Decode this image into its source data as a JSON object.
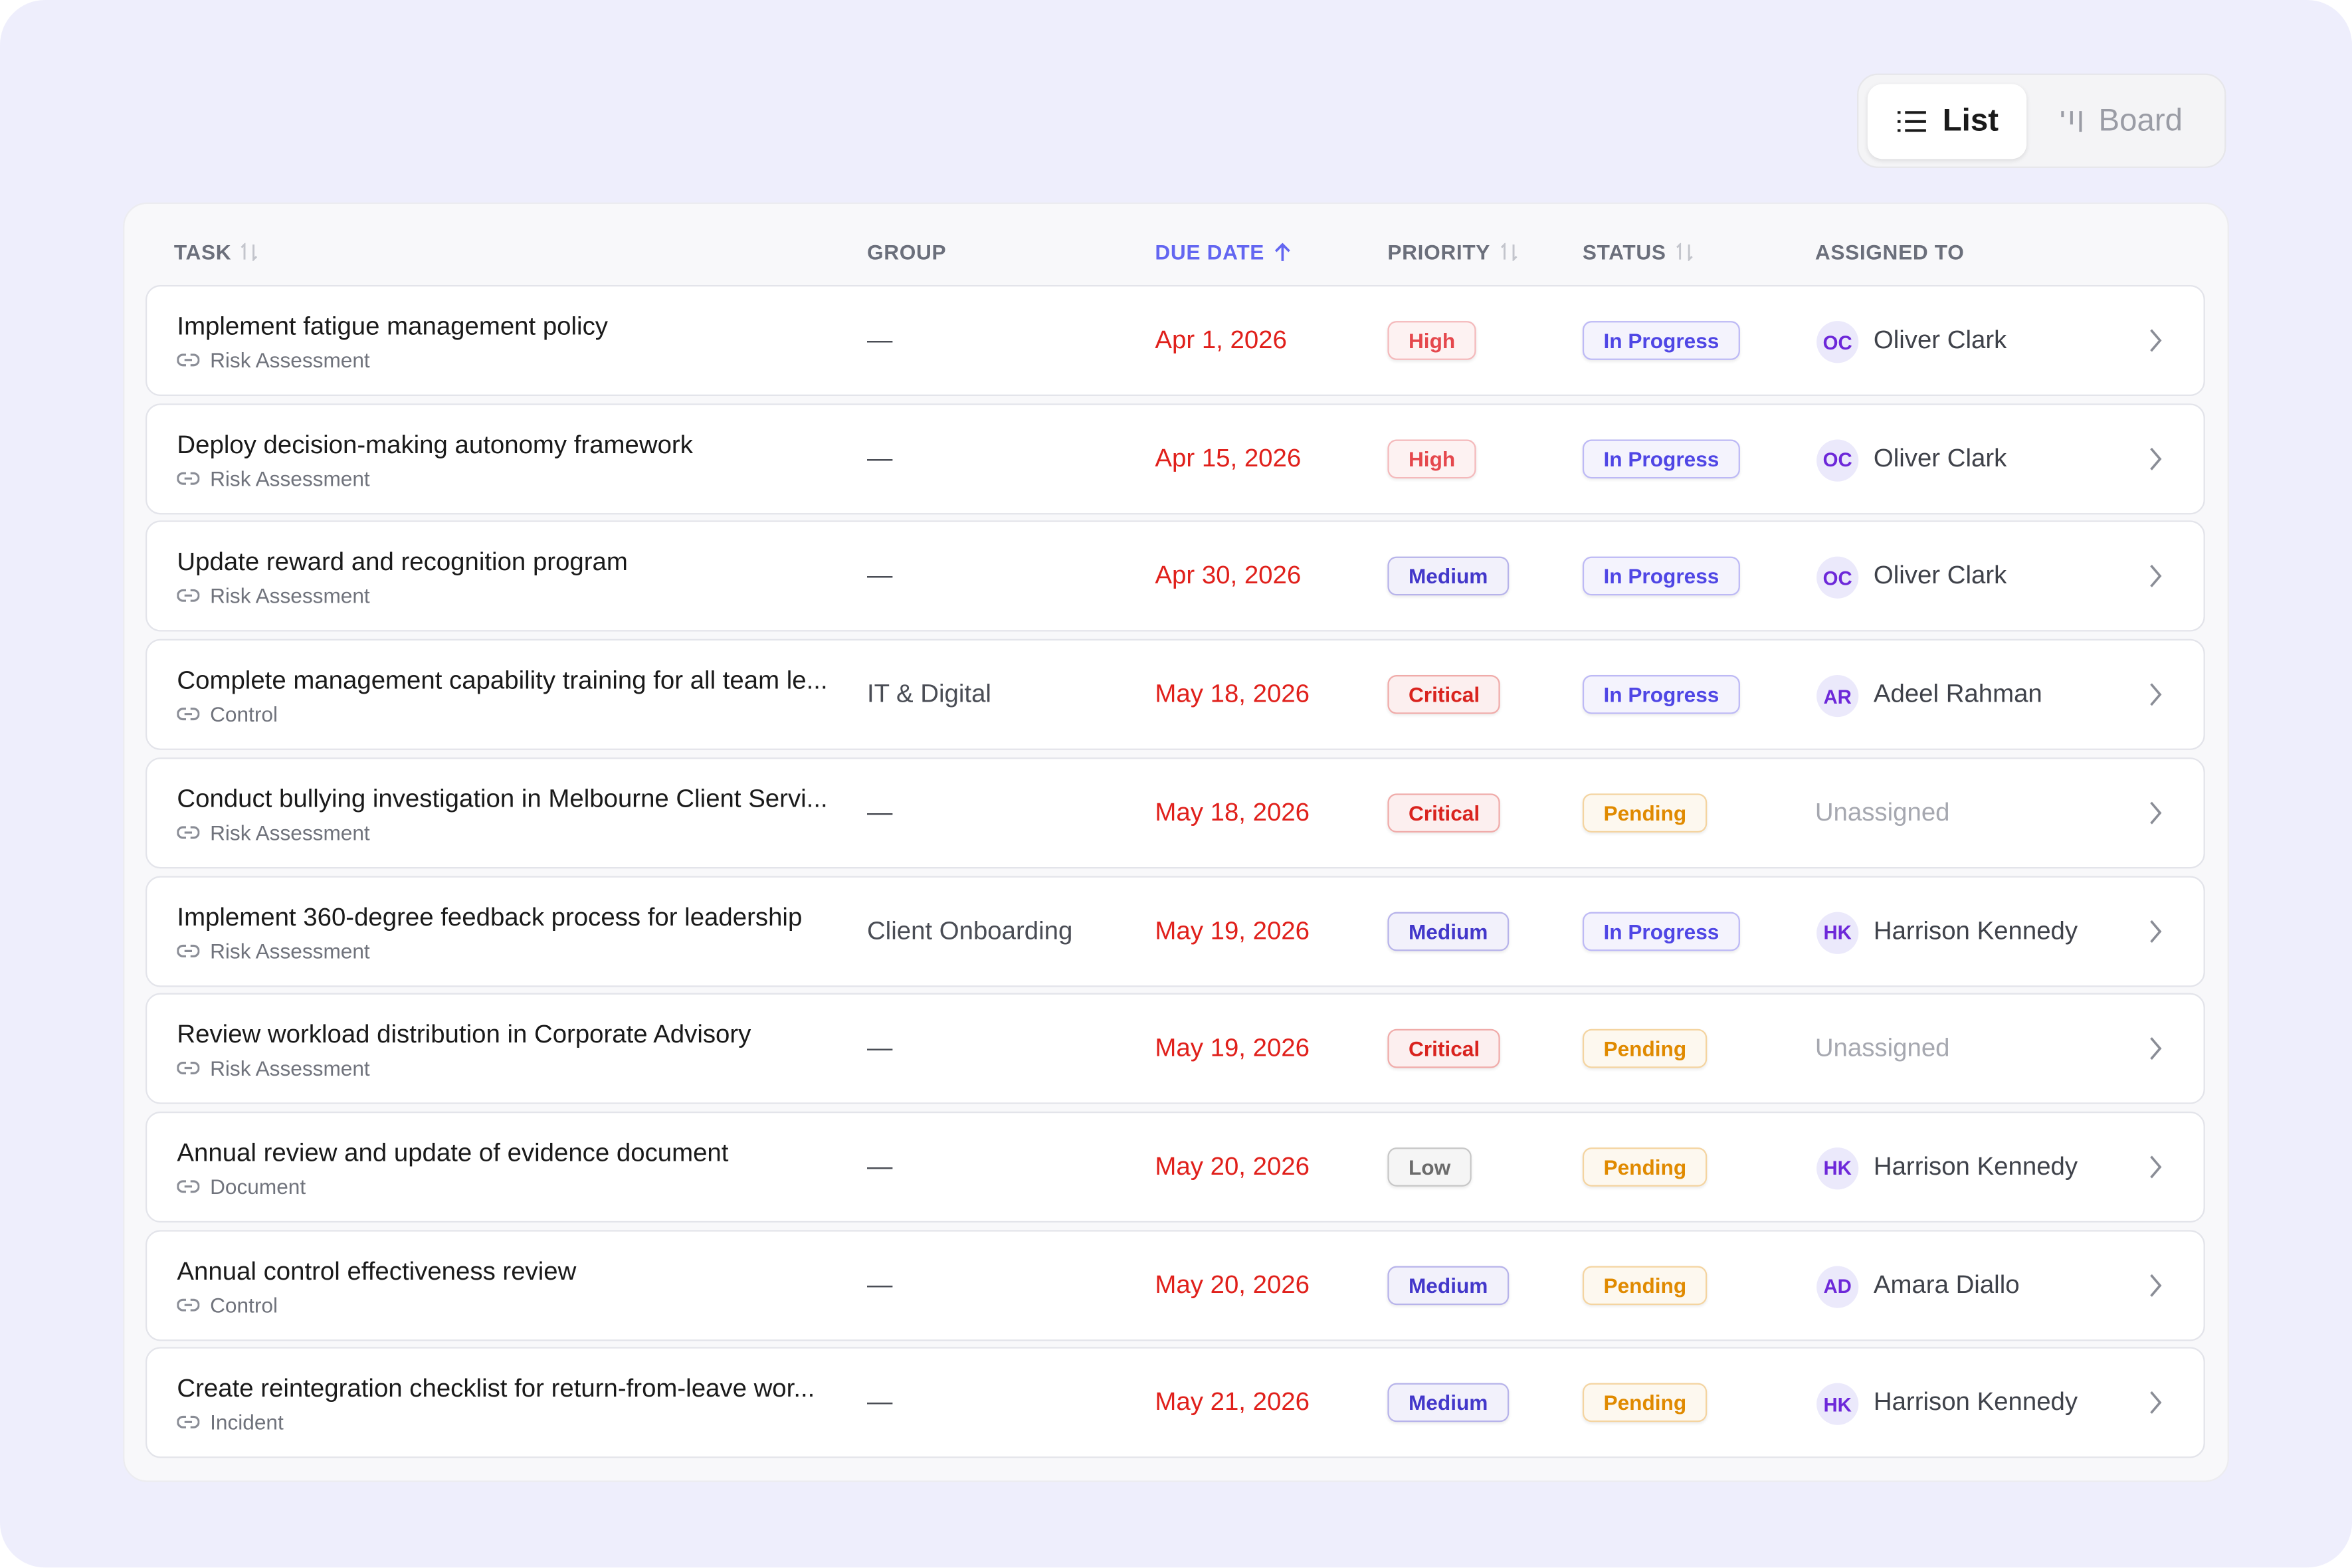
{
  "view_toggle": {
    "list": "List",
    "board": "Board"
  },
  "table": {
    "headers": {
      "task": "TASK",
      "group": "GROUP",
      "due_date": "DUE DATE",
      "priority": "PRIORITY",
      "status": "STATUS",
      "assigned_to": "ASSIGNED TO"
    },
    "rows": [
      {
        "task": "Implement fatigue management policy",
        "source": "Risk Assessment",
        "group": "—",
        "due": "Apr 1, 2026",
        "priority": "High",
        "priority_color": "#e5484d",
        "status": "In Progress",
        "status_color": "#4f46e5",
        "initials": "OC",
        "assignee": "Oliver Clark"
      },
      {
        "task": "Deploy decision-making autonomy framework",
        "source": "Risk Assessment",
        "group": "—",
        "due": "Apr 15, 2026",
        "priority": "High",
        "priority_color": "#e5484d",
        "status": "In Progress",
        "status_color": "#4f46e5",
        "initials": "OC",
        "assignee": "Oliver Clark"
      },
      {
        "task": "Update reward and recognition program",
        "source": "Risk Assessment",
        "group": "—",
        "due": "Apr 30, 2026",
        "priority": "Medium",
        "priority_color": "#4338ca",
        "status": "In Progress",
        "status_color": "#4f46e5",
        "initials": "OC",
        "assignee": "Oliver Clark"
      },
      {
        "task": "Complete management capability training for all team le...",
        "source": "Control",
        "group": "IT & Digital",
        "due": "May 18, 2026",
        "priority": "Critical",
        "priority_color": "#d9231e",
        "status": "In Progress",
        "status_color": "#4f46e5",
        "initials": "AR",
        "assignee": "Adeel Rahman"
      },
      {
        "task": "Conduct bullying investigation in Melbourne Client Servi...",
        "source": "Risk Assessment",
        "group": "—",
        "due": "May 18, 2026",
        "priority": "Critical",
        "priority_color": "#d9231e",
        "status": "Pending",
        "status_color": "#e08a00",
        "initials": null,
        "assignee": "Unassigned"
      },
      {
        "task": "Implement 360-degree feedback process for leadership",
        "source": "Risk Assessment",
        "group": "Client Onboarding",
        "due": "May 19, 2026",
        "priority": "Medium",
        "priority_color": "#4338ca",
        "status": "In Progress",
        "status_color": "#4f46e5",
        "initials": "HK",
        "assignee": "Harrison Kennedy"
      },
      {
        "task": "Review workload distribution in Corporate Advisory",
        "source": "Risk Assessment",
        "group": "—",
        "due": "May 19, 2026",
        "priority": "Critical",
        "priority_color": "#d9231e",
        "status": "Pending",
        "status_color": "#e08a00",
        "initials": null,
        "assignee": "Unassigned"
      },
      {
        "task": "Annual review and update of evidence document",
        "source": "Document",
        "group": "—",
        "due": "May 20, 2026",
        "priority": "Low",
        "priority_color": "#6b6b6b",
        "status": "Pending",
        "status_color": "#e08a00",
        "initials": "HK",
        "assignee": "Harrison Kennedy"
      },
      {
        "task": "Annual control effectiveness review",
        "source": "Control",
        "group": "—",
        "due": "May 20, 2026",
        "priority": "Medium",
        "priority_color": "#4338ca",
        "status": "Pending",
        "status_color": "#e08a00",
        "initials": "AD",
        "assignee": "Amara Diallo"
      },
      {
        "task": "Create reintegration checklist for return-from-leave wor...",
        "source": "Incident",
        "group": "—",
        "due": "May 21, 2026",
        "priority": "Medium",
        "priority_color": "#4338ca",
        "status": "Pending",
        "status_color": "#e08a00",
        "initials": "HK",
        "assignee": "Harrison Kennedy"
      }
    ]
  }
}
